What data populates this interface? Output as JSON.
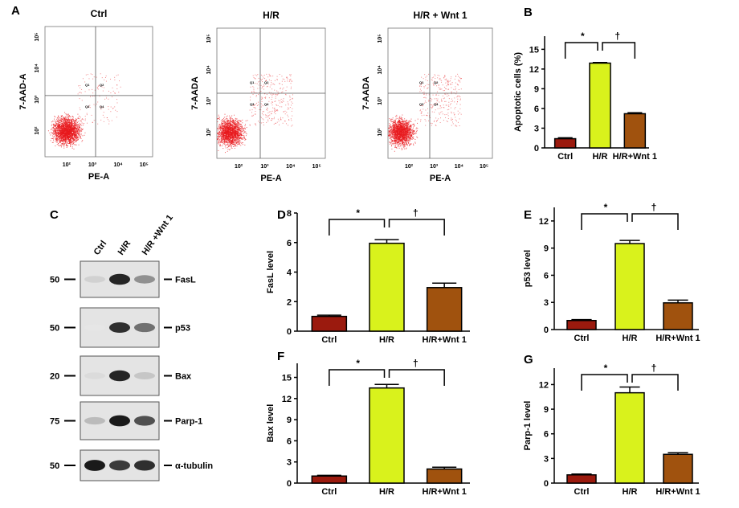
{
  "panel_labels": {
    "a": "A",
    "b": "B",
    "c": "C",
    "d": "D",
    "e": "E",
    "f": "F",
    "g": "G"
  },
  "colors": {
    "ctrl": "#9b1a0e",
    "hr": "#d9f21c",
    "wnt": "#a0520e",
    "dots": "#e8191e"
  },
  "flow": {
    "type": "scatter",
    "x_ticks": [
      "10²",
      "10³",
      "10⁴",
      "10⁵"
    ],
    "y_ticks": [
      "10²",
      "10³",
      "10⁴",
      "10⁵"
    ],
    "plots": [
      {
        "title": "Ctrl",
        "xlabel": "PE-A",
        "ylabel": "7-AAD-A"
      },
      {
        "title": "H/R",
        "xlabel": "PE-A",
        "ylabel": "7-AADA"
      },
      {
        "title": "H/R + Wnt 1",
        "xlabel": "PE-A",
        "ylabel": "7-AADA"
      }
    ],
    "quadrants": [
      "Q1",
      "Q2",
      "Q3",
      "Q4"
    ]
  },
  "western": {
    "lanes": [
      "Ctrl",
      "H/R",
      "H/R +Wnt 1"
    ],
    "rows": [
      {
        "marker": "50",
        "label": "FasL",
        "intensity": [
          0.1,
          0.9,
          0.4
        ]
      },
      {
        "marker": "50",
        "label": "p53",
        "intensity": [
          0.0,
          0.85,
          0.55
        ]
      },
      {
        "marker": "20",
        "label": "Bax",
        "intensity": [
          0.05,
          0.9,
          0.15
        ]
      },
      {
        "marker": "75",
        "label": "Parp-1",
        "intensity": [
          0.2,
          0.95,
          0.7
        ]
      },
      {
        "marker": "50",
        "label": "α-tubulin",
        "intensity": [
          0.95,
          0.8,
          0.85
        ]
      }
    ]
  },
  "chart_data": [
    {
      "panel": "B",
      "type": "bar",
      "categories": [
        "Ctrl",
        "H/R",
        "H/R+Wnt 1"
      ],
      "values": [
        1.4,
        12.9,
        5.2
      ],
      "errors": [
        0.15,
        0.1,
        0.15
      ],
      "ylabel": "Apoptotic cells (%)",
      "ylim": [
        0,
        17
      ],
      "yticks": [
        0,
        3,
        6,
        9,
        12,
        15
      ],
      "annotations": [
        "*",
        "†"
      ]
    },
    {
      "panel": "D",
      "type": "bar",
      "categories": [
        "Ctrl",
        "H/R",
        "H/R+Wnt 1"
      ],
      "values": [
        1.0,
        5.95,
        2.95
      ],
      "errors": [
        0.08,
        0.25,
        0.3
      ],
      "ylabel": "FasL level",
      "ylim": [
        0,
        8
      ],
      "yticks": [
        0,
        2,
        4,
        6,
        8
      ],
      "annotations": [
        "*",
        "†"
      ]
    },
    {
      "panel": "E",
      "type": "bar",
      "categories": [
        "Ctrl",
        "H/R",
        "H/R+Wnt 1"
      ],
      "values": [
        1.0,
        9.5,
        2.95
      ],
      "errors": [
        0.1,
        0.35,
        0.3
      ],
      "ylabel": "p53 level",
      "ylim": [
        0,
        13.5
      ],
      "yticks": [
        0,
        3,
        6,
        9,
        12
      ],
      "annotations": [
        "*",
        "†"
      ]
    },
    {
      "panel": "F",
      "type": "bar",
      "categories": [
        "Ctrl",
        "H/R",
        "H/R+Wnt 1"
      ],
      "values": [
        1.0,
        13.5,
        2.0
      ],
      "errors": [
        0.1,
        0.5,
        0.25
      ],
      "ylabel": "Bax level",
      "ylim": [
        0,
        17
      ],
      "yticks": [
        0,
        3,
        6,
        9,
        12,
        15
      ],
      "annotations": [
        "*",
        "†"
      ]
    },
    {
      "panel": "G",
      "type": "bar",
      "categories": [
        "Ctrl",
        "H/R",
        "H/R+Wnt 1"
      ],
      "values": [
        1.0,
        11.0,
        3.5
      ],
      "errors": [
        0.1,
        0.7,
        0.2
      ],
      "ylabel": "Parp-1 level",
      "ylim": [
        0,
        14
      ],
      "yticks": [
        0,
        3,
        6,
        9,
        12
      ],
      "annotations": [
        "*",
        "†"
      ]
    }
  ]
}
